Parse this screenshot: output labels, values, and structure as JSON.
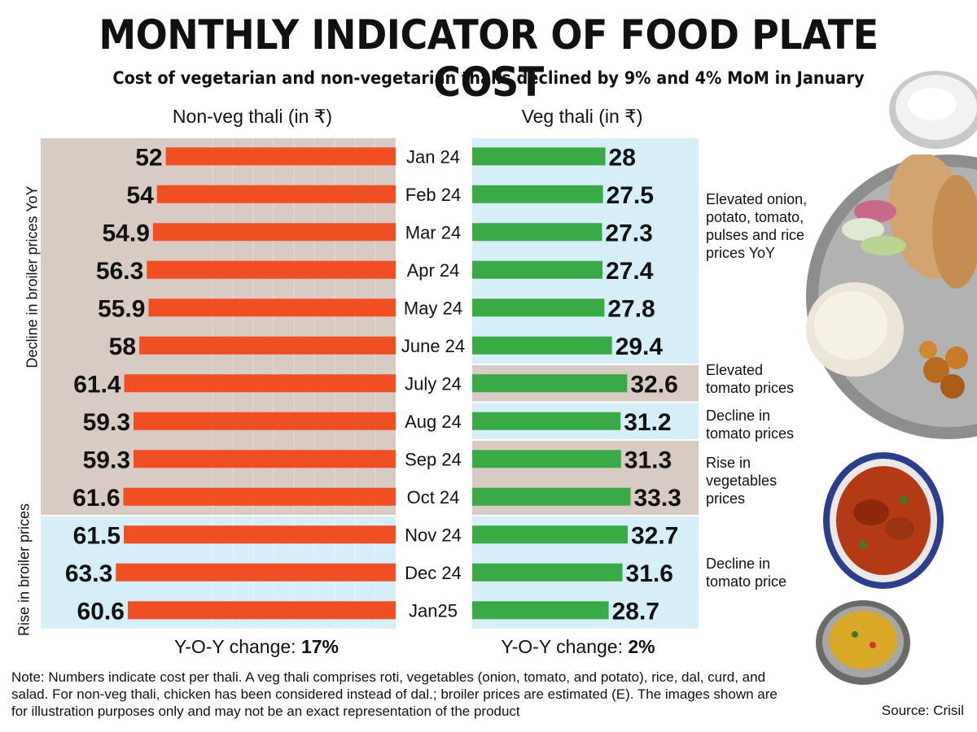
{
  "title": "MONTHLY INDICATOR OF FOOD PLATE COST",
  "subtitle": "Cost of vegetarian and non-vegetarian thalis declined by 9% and 4% MoM in January",
  "chart_data": {
    "type": "bar",
    "orientation": "horizontal-butterfly",
    "categories": [
      "Jan 24",
      "Feb 24",
      "Mar 24",
      "Apr 24",
      "May 24",
      "June 24",
      "July 24",
      "Aug 24",
      "Sep 24",
      "Oct 24",
      "Nov 24",
      "Dec 24",
      "Jan25"
    ],
    "series": [
      {
        "name": "Non-veg thali (in ₹)",
        "values": [
          52,
          54,
          54.9,
          56.3,
          55.9,
          58,
          61.4,
          59.3,
          59.3,
          61.6,
          61.5,
          63.3,
          60.6
        ],
        "labels": [
          "52",
          "54",
          "54.9",
          "56.3",
          "55.9",
          "58",
          "61.4",
          "59.3",
          "59.3",
          "61.6",
          "61.5",
          "63.3",
          "60.6"
        ],
        "color": "#f04e23",
        "direction": "left"
      },
      {
        "name": "Veg thali (in ₹)",
        "values": [
          28,
          27.5,
          27.3,
          27.4,
          27.8,
          29.4,
          32.6,
          31.2,
          31.3,
          33.3,
          32.7,
          31.6,
          28.7
        ],
        "labels": [
          "28",
          "27.5",
          "27.3",
          "27.4",
          "27.8",
          "29.4",
          "32.6",
          "31.2",
          "31.3",
          "33.3",
          "32.7",
          "31.6",
          "28.7"
        ],
        "color": "#3aaa47",
        "direction": "right"
      }
    ],
    "nonveg_bands": [
      {
        "from": 0,
        "to": 9,
        "label": "Decline in broiler prices YoY",
        "color": "#d8cbc3"
      },
      {
        "from": 10,
        "to": 12,
        "label": "Rise in broiler prices",
        "color": "#d6eef8"
      }
    ],
    "veg_bands": [
      {
        "from": 0,
        "to": 5,
        "label": "Elevated onion, potato, tomato, pulses and rice prices YoY",
        "color": "#d6eef8"
      },
      {
        "from": 6,
        "to": 6,
        "label": "Elevated tomato prices",
        "color": "#d8cbc3"
      },
      {
        "from": 7,
        "to": 7,
        "label": "Decline in tomato prices",
        "color": "#d6eef8"
      },
      {
        "from": 8,
        "to": 9,
        "label": "Rise in vegetables prices",
        "color": "#d8cbc3"
      },
      {
        "from": 10,
        "to": 12,
        "label": "Decline in tomato price",
        "color": "#d6eef8"
      }
    ]
  },
  "nonveg_header": "Non-veg thali (in ₹)",
  "veg_header": "Veg thali (in ₹)",
  "nonveg_yoy_label": "Y-O-Y change: ",
  "nonveg_yoy_value": "17%",
  "veg_yoy_label": "Y-O-Y change: ",
  "veg_yoy_value": "2%",
  "note": "Note: Numbers indicate cost per thali. A veg thali comprises roti, vegetables (onion, tomato, and potato), rice, dal, curd, and salad. For non-veg thali, chicken has been considered instead of dal.; broiler prices are estimated (E). The images shown are for illustration purposes only and may not be an exact representation of the product",
  "source": "Source: Crisil",
  "colors": {
    "nonveg_bar": "#f04e23",
    "veg_bar": "#3aaa47",
    "band_brown": "#d8cbc3",
    "band_blue": "#d6eef8"
  }
}
